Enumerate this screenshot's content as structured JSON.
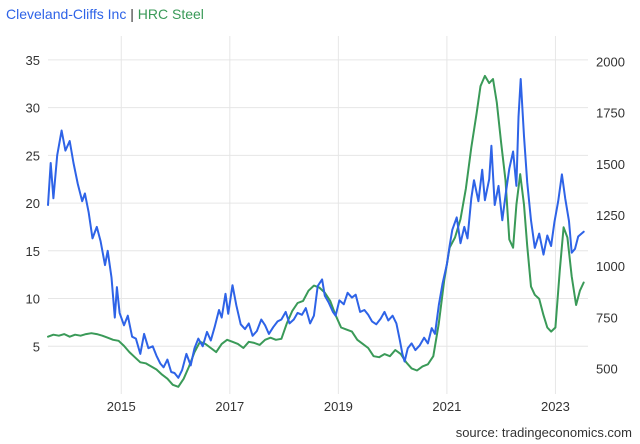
{
  "legend": {
    "series1": "Cleveland-Cliffs Inc",
    "separator": "|",
    "series2": "HRC Steel"
  },
  "source": "source: tradingeconomics.com",
  "colors": {
    "series1": "#2e63e7",
    "series2": "#3a9a58",
    "grid": "#e6e6e6",
    "text": "#333333"
  },
  "chart_data": {
    "type": "line",
    "x_ticks": [
      "2015",
      "2017",
      "2019",
      "2021",
      "2023"
    ],
    "y_left_ticks": [
      "5",
      "10",
      "15",
      "20",
      "25",
      "30",
      "35"
    ],
    "y_right_ticks": [
      "500",
      "750",
      "1000",
      "1250",
      "1500",
      "1750",
      "2000"
    ],
    "ylim_left": [
      0,
      37.5
    ],
    "ylim_right": [
      375,
      2125
    ],
    "xlim": [
      2013.65,
      2023.6
    ],
    "grid": true,
    "series": [
      {
        "name": "Cleveland-Cliffs Inc",
        "axis": "left",
        "points": [
          [
            2013.65,
            19.8
          ],
          [
            2013.7,
            24.2
          ],
          [
            2013.75,
            20.5
          ],
          [
            2013.82,
            25
          ],
          [
            2013.9,
            27.6
          ],
          [
            2013.97,
            25.5
          ],
          [
            2014.05,
            26.5
          ],
          [
            2014.12,
            24.2
          ],
          [
            2014.2,
            22
          ],
          [
            2014.28,
            20.2
          ],
          [
            2014.33,
            21
          ],
          [
            2014.4,
            19
          ],
          [
            2014.47,
            16.3
          ],
          [
            2014.55,
            17.5
          ],
          [
            2014.62,
            16
          ],
          [
            2014.7,
            13.5
          ],
          [
            2014.75,
            15
          ],
          [
            2014.82,
            12.2
          ],
          [
            2014.88,
            8
          ],
          [
            2014.92,
            11.2
          ],
          [
            2014.97,
            8.5
          ],
          [
            2015.05,
            7.2
          ],
          [
            2015.12,
            8.2
          ],
          [
            2015.2,
            6
          ],
          [
            2015.27,
            5.8
          ],
          [
            2015.35,
            4.2
          ],
          [
            2015.42,
            6.3
          ],
          [
            2015.5,
            4.8
          ],
          [
            2015.58,
            5
          ],
          [
            2015.65,
            4
          ],
          [
            2015.72,
            3.2
          ],
          [
            2015.78,
            2.8
          ],
          [
            2015.85,
            3.6
          ],
          [
            2015.92,
            2.3
          ],
          [
            2015.98,
            2.2
          ],
          [
            2016.05,
            1.7
          ],
          [
            2016.12,
            2.5
          ],
          [
            2016.2,
            4.2
          ],
          [
            2016.28,
            3
          ],
          [
            2016.35,
            4.8
          ],
          [
            2016.42,
            5.8
          ],
          [
            2016.5,
            5
          ],
          [
            2016.58,
            6.5
          ],
          [
            2016.65,
            5.6
          ],
          [
            2016.72,
            7
          ],
          [
            2016.8,
            8.8
          ],
          [
            2016.85,
            8
          ],
          [
            2016.92,
            10.5
          ],
          [
            2016.97,
            8.4
          ],
          [
            2017.05,
            11.4
          ],
          [
            2017.12,
            9.3
          ],
          [
            2017.2,
            7.3
          ],
          [
            2017.28,
            6.8
          ],
          [
            2017.35,
            7.4
          ],
          [
            2017.42,
            6.1
          ],
          [
            2017.5,
            6.6
          ],
          [
            2017.58,
            7.8
          ],
          [
            2017.65,
            7.2
          ],
          [
            2017.72,
            6.3
          ],
          [
            2017.8,
            7
          ],
          [
            2017.88,
            7.6
          ],
          [
            2017.95,
            7.8
          ],
          [
            2018.03,
            8.6
          ],
          [
            2018.1,
            7.4
          ],
          [
            2018.18,
            7.8
          ],
          [
            2018.25,
            8.5
          ],
          [
            2018.33,
            8.3
          ],
          [
            2018.4,
            9
          ],
          [
            2018.48,
            7.4
          ],
          [
            2018.55,
            8.2
          ],
          [
            2018.62,
            11.3
          ],
          [
            2018.7,
            12
          ],
          [
            2018.75,
            10.3
          ],
          [
            2018.82,
            9.6
          ],
          [
            2018.9,
            8.6
          ],
          [
            2018.95,
            8.2
          ],
          [
            2019.02,
            9.8
          ],
          [
            2019.1,
            9.4
          ],
          [
            2019.17,
            10.6
          ],
          [
            2019.25,
            10.1
          ],
          [
            2019.32,
            10.4
          ],
          [
            2019.4,
            8.6
          ],
          [
            2019.48,
            8.8
          ],
          [
            2019.55,
            8.3
          ],
          [
            2019.62,
            7.6
          ],
          [
            2019.7,
            7.3
          ],
          [
            2019.78,
            7.9
          ],
          [
            2019.85,
            8.6
          ],
          [
            2019.92,
            7.7
          ],
          [
            2020,
            8.2
          ],
          [
            2020.07,
            7.4
          ],
          [
            2020.13,
            5.7
          ],
          [
            2020.18,
            4.2
          ],
          [
            2020.22,
            3.4
          ],
          [
            2020.28,
            4.8
          ],
          [
            2020.35,
            5.3
          ],
          [
            2020.42,
            4.6
          ],
          [
            2020.5,
            5.1
          ],
          [
            2020.58,
            5.9
          ],
          [
            2020.65,
            5.3
          ],
          [
            2020.72,
            6.9
          ],
          [
            2020.78,
            6.3
          ],
          [
            2020.85,
            9.3
          ],
          [
            2020.92,
            11.6
          ],
          [
            2021,
            13.6
          ],
          [
            2021.05,
            15.5
          ],
          [
            2021.1,
            17.2
          ],
          [
            2021.18,
            18.5
          ],
          [
            2021.25,
            15.8
          ],
          [
            2021.32,
            17.5
          ],
          [
            2021.38,
            16.3
          ],
          [
            2021.45,
            20.5
          ],
          [
            2021.5,
            22.4
          ],
          [
            2021.58,
            20.2
          ],
          [
            2021.65,
            23.5
          ],
          [
            2021.7,
            20.3
          ],
          [
            2021.78,
            22.5
          ],
          [
            2021.82,
            26
          ],
          [
            2021.88,
            19.8
          ],
          [
            2021.95,
            21.8
          ],
          [
            2022.02,
            18.2
          ],
          [
            2022.08,
            20.8
          ],
          [
            2022.15,
            23.6
          ],
          [
            2022.22,
            25.4
          ],
          [
            2022.28,
            21.8
          ],
          [
            2022.32,
            29
          ],
          [
            2022.36,
            33
          ],
          [
            2022.42,
            27
          ],
          [
            2022.48,
            22.2
          ],
          [
            2022.55,
            18.2
          ],
          [
            2022.62,
            15.3
          ],
          [
            2022.7,
            16.8
          ],
          [
            2022.78,
            14.6
          ],
          [
            2022.85,
            16.6
          ],
          [
            2022.92,
            15.5
          ],
          [
            2022.98,
            18
          ],
          [
            2023.05,
            20.2
          ],
          [
            2023.12,
            23
          ],
          [
            2023.18,
            20.5
          ],
          [
            2023.25,
            18.1
          ],
          [
            2023.3,
            14.8
          ],
          [
            2023.36,
            15.2
          ],
          [
            2023.42,
            16.5
          ],
          [
            2023.48,
            16.8
          ],
          [
            2023.52,
            17
          ]
        ]
      },
      {
        "name": "HRC Steel",
        "axis": "right",
        "points": [
          [
            2013.65,
            655
          ],
          [
            2013.75,
            665
          ],
          [
            2013.85,
            660
          ],
          [
            2013.95,
            668
          ],
          [
            2014.05,
            655
          ],
          [
            2014.15,
            665
          ],
          [
            2014.25,
            660
          ],
          [
            2014.35,
            668
          ],
          [
            2014.45,
            672
          ],
          [
            2014.55,
            668
          ],
          [
            2014.65,
            660
          ],
          [
            2014.75,
            650
          ],
          [
            2014.85,
            640
          ],
          [
            2014.95,
            635
          ],
          [
            2015.05,
            610
          ],
          [
            2015.15,
            580
          ],
          [
            2015.25,
            555
          ],
          [
            2015.35,
            530
          ],
          [
            2015.45,
            525
          ],
          [
            2015.55,
            510
          ],
          [
            2015.65,
            495
          ],
          [
            2015.75,
            470
          ],
          [
            2015.85,
            450
          ],
          [
            2015.95,
            420
          ],
          [
            2016.05,
            410
          ],
          [
            2016.15,
            450
          ],
          [
            2016.25,
            510
          ],
          [
            2016.35,
            580
          ],
          [
            2016.45,
            630
          ],
          [
            2016.55,
            620
          ],
          [
            2016.65,
            600
          ],
          [
            2016.75,
            580
          ],
          [
            2016.85,
            620
          ],
          [
            2016.95,
            640
          ],
          [
            2017.05,
            630
          ],
          [
            2017.15,
            620
          ],
          [
            2017.25,
            600
          ],
          [
            2017.35,
            630
          ],
          [
            2017.45,
            625
          ],
          [
            2017.55,
            615
          ],
          [
            2017.65,
            640
          ],
          [
            2017.75,
            650
          ],
          [
            2017.85,
            640
          ],
          [
            2017.95,
            645
          ],
          [
            2018.05,
            720
          ],
          [
            2018.15,
            780
          ],
          [
            2018.25,
            820
          ],
          [
            2018.35,
            830
          ],
          [
            2018.45,
            880
          ],
          [
            2018.55,
            905
          ],
          [
            2018.65,
            895
          ],
          [
            2018.75,
            870
          ],
          [
            2018.85,
            830
          ],
          [
            2018.95,
            760
          ],
          [
            2019.05,
            700
          ],
          [
            2019.15,
            690
          ],
          [
            2019.25,
            680
          ],
          [
            2019.35,
            640
          ],
          [
            2019.45,
            620
          ],
          [
            2019.55,
            600
          ],
          [
            2019.65,
            560
          ],
          [
            2019.75,
            555
          ],
          [
            2019.85,
            570
          ],
          [
            2019.95,
            560
          ],
          [
            2020.05,
            590
          ],
          [
            2020.15,
            570
          ],
          [
            2020.25,
            530
          ],
          [
            2020.35,
            500
          ],
          [
            2020.45,
            490
          ],
          [
            2020.55,
            510
          ],
          [
            2020.65,
            520
          ],
          [
            2020.75,
            560
          ],
          [
            2020.85,
            720
          ],
          [
            2020.95,
            930
          ],
          [
            2021.05,
            1090
          ],
          [
            2021.15,
            1140
          ],
          [
            2021.25,
            1230
          ],
          [
            2021.35,
            1380
          ],
          [
            2021.45,
            1580
          ],
          [
            2021.55,
            1750
          ],
          [
            2021.62,
            1880
          ],
          [
            2021.7,
            1930
          ],
          [
            2021.78,
            1895
          ],
          [
            2021.85,
            1915
          ],
          [
            2021.92,
            1800
          ],
          [
            2022,
            1600
          ],
          [
            2022.08,
            1420
          ],
          [
            2022.15,
            1130
          ],
          [
            2022.22,
            1090
          ],
          [
            2022.28,
            1300
          ],
          [
            2022.35,
            1450
          ],
          [
            2022.42,
            1300
          ],
          [
            2022.48,
            1100
          ],
          [
            2022.55,
            900
          ],
          [
            2022.62,
            860
          ],
          [
            2022.7,
            840
          ],
          [
            2022.78,
            760
          ],
          [
            2022.85,
            700
          ],
          [
            2022.92,
            680
          ],
          [
            2023,
            700
          ],
          [
            2023.08,
            980
          ],
          [
            2023.15,
            1190
          ],
          [
            2023.22,
            1140
          ],
          [
            2023.3,
            950
          ],
          [
            2023.38,
            810
          ],
          [
            2023.45,
            880
          ],
          [
            2023.52,
            920
          ]
        ]
      }
    ]
  }
}
